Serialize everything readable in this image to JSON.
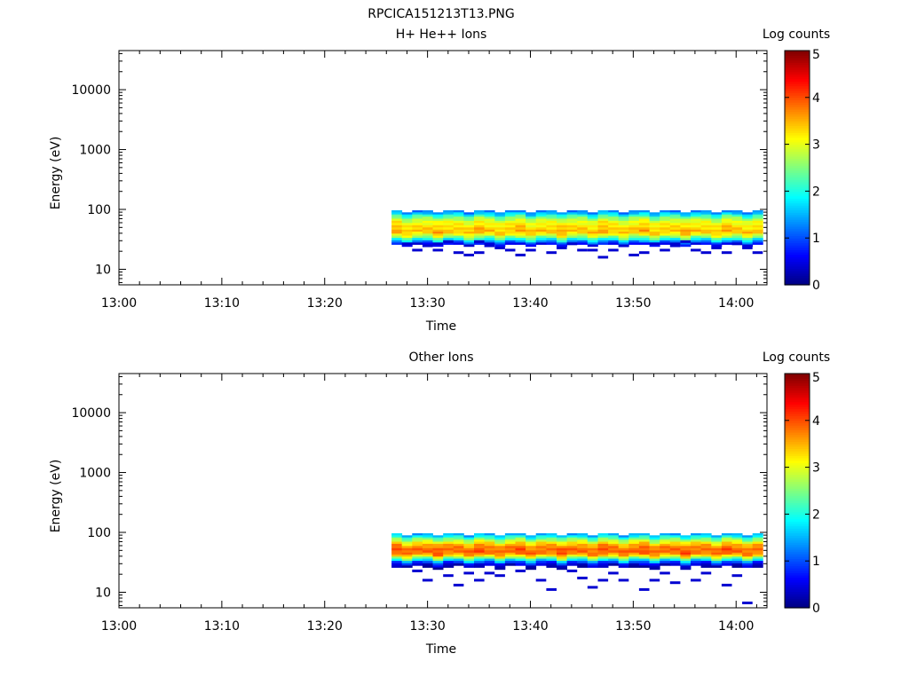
{
  "figure_title": "RPCICA151213T13.PNG",
  "chart_data": [
    {
      "type": "heatmap",
      "title": "H+ He++ Ions",
      "xlabel": "Time",
      "ylabel": "Energy (eV)",
      "colorbar_label": "Log counts",
      "x_ticks": [
        "13:00",
        "13:10",
        "13:20",
        "13:30",
        "13:40",
        "13:50",
        "14:00"
      ],
      "xlim": [
        "13:00",
        "14:03"
      ],
      "y_scale": "log",
      "ylim": [
        5.5,
        45000
      ],
      "y_ticks": [
        "10",
        "100",
        "1000",
        "10000"
      ],
      "colorbar_ticks": [
        "0",
        "1",
        "2",
        "3",
        "4",
        "5"
      ],
      "clim": [
        0,
        5
      ],
      "data_start": "13:26.5",
      "data_end": "14:02.6",
      "time_bins": 36,
      "energy_channels_eV": [
        93,
        86,
        79,
        73,
        67,
        62,
        57,
        52,
        48,
        44,
        41,
        38,
        35,
        32,
        29,
        27,
        25,
        23,
        21,
        19,
        17.5,
        16,
        14.5,
        13.3,
        12.2,
        11.2,
        10.3,
        9.5,
        8.7,
        8,
        7.3,
        6.7,
        6.1
      ],
      "spectrum_profile": [
        1.4,
        1.8,
        2.3,
        2.7,
        3.0,
        3.2,
        3.3,
        3.4,
        3.5,
        3.6,
        3.45,
        3.1,
        2.6,
        2.0,
        1.3,
        0.7
      ],
      "sparse_low_energy_counts": [
        {
          "t": 1,
          "e": 28
        },
        {
          "t": 2,
          "e": 22
        },
        {
          "t": 3,
          "e": 25
        },
        {
          "t": 4,
          "e": 21
        },
        {
          "t": 4,
          "e": 27
        },
        {
          "t": 5,
          "e": 30
        },
        {
          "t": 6,
          "e": 20
        },
        {
          "t": 7,
          "e": 18
        },
        {
          "t": 8,
          "e": 20
        },
        {
          "t": 8,
          "e": 29
        },
        {
          "t": 9,
          "e": 25
        },
        {
          "t": 10,
          "e": 24
        },
        {
          "t": 11,
          "e": 22
        },
        {
          "t": 12,
          "e": 18
        },
        {
          "t": 13,
          "e": 21
        },
        {
          "t": 15,
          "e": 19
        },
        {
          "t": 16,
          "e": 23
        },
        {
          "t": 17,
          "e": 27
        },
        {
          "t": 18,
          "e": 22
        },
        {
          "t": 19,
          "e": 21
        },
        {
          "t": 20,
          "e": 17
        },
        {
          "t": 21,
          "e": 22
        },
        {
          "t": 22,
          "e": 25
        },
        {
          "t": 23,
          "e": 18
        },
        {
          "t": 24,
          "e": 20
        },
        {
          "t": 25,
          "e": 28
        },
        {
          "t": 26,
          "e": 21
        },
        {
          "t": 27,
          "e": 25
        },
        {
          "t": 28,
          "e": 29
        },
        {
          "t": 29,
          "e": 22
        },
        {
          "t": 30,
          "e": 19
        },
        {
          "t": 31,
          "e": 24
        },
        {
          "t": 32,
          "e": 20
        },
        {
          "t": 33,
          "e": 27
        },
        {
          "t": 34,
          "e": 24
        },
        {
          "t": 35,
          "e": 20
        }
      ]
    },
    {
      "type": "heatmap",
      "title": "Other Ions",
      "xlabel": "Time",
      "ylabel": "Energy (eV)",
      "colorbar_label": "Log counts",
      "x_ticks": [
        "13:00",
        "13:10",
        "13:20",
        "13:30",
        "13:40",
        "13:50",
        "14:00"
      ],
      "xlim": [
        "13:00",
        "14:03"
      ],
      "y_scale": "log",
      "ylim": [
        5.5,
        45000
      ],
      "y_ticks": [
        "10",
        "100",
        "1000",
        "10000"
      ],
      "colorbar_ticks": [
        "0",
        "1",
        "2",
        "3",
        "4",
        "5"
      ],
      "clim": [
        0,
        5
      ],
      "data_start": "13:26.5",
      "data_end": "14:02.6",
      "time_bins": 36,
      "energy_channels_eV": [
        93,
        86,
        79,
        73,
        67,
        62,
        57,
        52,
        48,
        44,
        41,
        38,
        35,
        32,
        29,
        27,
        25,
        23,
        21,
        19,
        17.5,
        16,
        14.5,
        13.3,
        12.2,
        11.2,
        10.3,
        9.5,
        8.7,
        8,
        7.3,
        6.7,
        6.1
      ],
      "spectrum_profile": [
        1.6,
        2.1,
        2.6,
        3.0,
        3.4,
        3.7,
        3.9,
        4.0,
        4.0,
        3.8,
        3.3,
        2.6,
        1.8,
        1.0,
        0.5,
        0.2
      ],
      "sparse_low_energy_counts": [
        {
          "t": 2,
          "e": 23
        },
        {
          "t": 3,
          "e": 17
        },
        {
          "t": 5,
          "e": 20
        },
        {
          "t": 6,
          "e": 14
        },
        {
          "t": 7,
          "e": 22
        },
        {
          "t": 8,
          "e": 17
        },
        {
          "t": 9,
          "e": 21
        },
        {
          "t": 10,
          "e": 19
        },
        {
          "t": 12,
          "e": 24
        },
        {
          "t": 14,
          "e": 16
        },
        {
          "t": 15,
          "e": 12
        },
        {
          "t": 17,
          "e": 24
        },
        {
          "t": 18,
          "e": 18
        },
        {
          "t": 19,
          "e": 13
        },
        {
          "t": 20,
          "e": 17
        },
        {
          "t": 21,
          "e": 22
        },
        {
          "t": 22,
          "e": 16
        },
        {
          "t": 24,
          "e": 12
        },
        {
          "t": 25,
          "e": 17
        },
        {
          "t": 26,
          "e": 21
        },
        {
          "t": 27,
          "e": 15
        },
        {
          "t": 29,
          "e": 17
        },
        {
          "t": 30,
          "e": 22
        },
        {
          "t": 32,
          "e": 14
        },
        {
          "t": 33,
          "e": 19
        },
        {
          "t": 34,
          "e": 6
        }
      ]
    }
  ]
}
